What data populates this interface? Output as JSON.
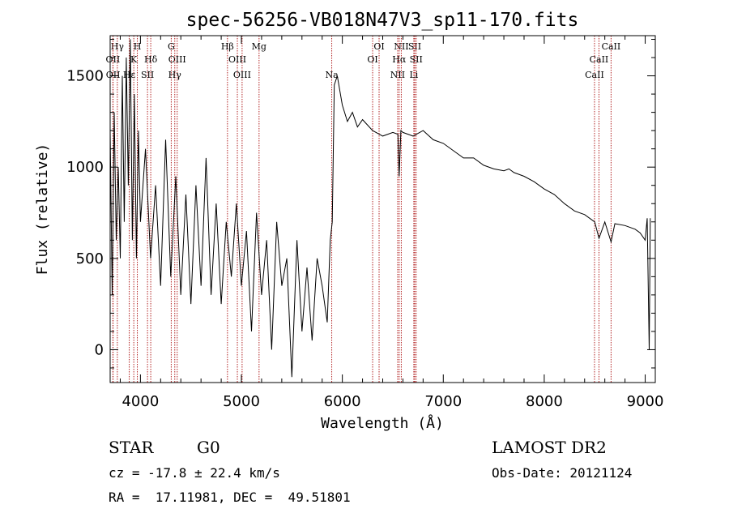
{
  "chart_data": {
    "type": "line",
    "title": "spec-56256-VB018N47V3_sp11-170.fits",
    "xlabel": "Wavelength (Å)",
    "ylabel": "Flux (relative)",
    "xlim": [
      3700,
      9100
    ],
    "ylim": [
      -180,
      1720
    ],
    "x_ticks": [
      4000,
      5000,
      6000,
      7000,
      8000,
      9000
    ],
    "y_ticks": [
      0,
      500,
      1000,
      1500
    ],
    "grid": false,
    "series": [
      {
        "color": "#000000",
        "x": [
          3700,
          3720,
          3740,
          3760,
          3780,
          3800,
          3820,
          3840,
          3860,
          3880,
          3900,
          3920,
          3940,
          3960,
          3980,
          4000,
          4050,
          4100,
          4150,
          4200,
          4250,
          4300,
          4350,
          4400,
          4450,
          4500,
          4550,
          4600,
          4650,
          4700,
          4750,
          4800,
          4850,
          4900,
          4950,
          5000,
          5050,
          5100,
          5150,
          5200,
          5250,
          5300,
          5350,
          5400,
          5450,
          5500,
          5550,
          5600,
          5650,
          5700,
          5750,
          5800,
          5850,
          5880,
          5900,
          5920,
          5950,
          6000,
          6050,
          6100,
          6150,
          6200,
          6300,
          6400,
          6500,
          6550,
          6563,
          6580,
          6600,
          6650,
          6700,
          6800,
          6900,
          7000,
          7100,
          7200,
          7300,
          7400,
          7500,
          7600,
          7650,
          7700,
          7800,
          7900,
          8000,
          8100,
          8200,
          8300,
          8400,
          8500,
          8542,
          8600,
          8662,
          8700,
          8800,
          8900,
          8950,
          9000,
          9020,
          9040,
          9050
        ],
        "y": [
          1200,
          300,
          1300,
          600,
          1000,
          500,
          1500,
          700,
          1600,
          900,
          1700,
          600,
          1400,
          500,
          1200,
          700,
          1100,
          500,
          900,
          350,
          1150,
          400,
          950,
          300,
          850,
          250,
          900,
          350,
          1050,
          300,
          800,
          250,
          700,
          400,
          800,
          350,
          650,
          100,
          750,
          300,
          600,
          0,
          700,
          350,
          500,
          -150,
          600,
          100,
          450,
          50,
          500,
          350,
          150,
          600,
          700,
          1450,
          1500,
          1340,
          1250,
          1300,
          1220,
          1260,
          1200,
          1170,
          1190,
          1180,
          950,
          1200,
          1190,
          1180,
          1170,
          1200,
          1150,
          1130,
          1090,
          1050,
          1050,
          1010,
          990,
          980,
          990,
          970,
          950,
          920,
          880,
          850,
          800,
          760,
          740,
          700,
          610,
          700,
          590,
          690,
          680,
          660,
          640,
          600,
          720,
          0,
          720
        ]
      }
    ],
    "line_markers": [
      {
        "label": "Hγ",
        "x": 3771,
        "row": 0
      },
      {
        "label": "H",
        "x": 3969,
        "row": 0
      },
      {
        "label": "G",
        "x": 4305,
        "row": 0
      },
      {
        "label": "Hβ",
        "x": 4862,
        "row": 0
      },
      {
        "label": "Mg",
        "x": 5175,
        "row": 0
      },
      {
        "label": "OI",
        "x": 6364,
        "row": 0
      },
      {
        "label": "NII",
        "x": 6584,
        "row": 0
      },
      {
        "label": "SII",
        "x": 6717,
        "row": 0
      },
      {
        "label": "CaII",
        "x": 8662,
        "row": 0
      },
      {
        "label": "OII",
        "x": 3727,
        "row": 1
      },
      {
        "label": "K",
        "x": 3934,
        "row": 1
      },
      {
        "label": "Hδ",
        "x": 4102,
        "row": 1
      },
      {
        "label": "OIII",
        "x": 4364,
        "row": 1
      },
      {
        "label": "OIII",
        "x": 4960,
        "row": 1
      },
      {
        "label": "OI",
        "x": 6300,
        "row": 1
      },
      {
        "label": "Hα",
        "x": 6563,
        "row": 1
      },
      {
        "label": "SII",
        "x": 6731,
        "row": 1
      },
      {
        "label": "CaII",
        "x": 8542,
        "row": 1
      },
      {
        "label": "OII",
        "x": 3729,
        "row": 2
      },
      {
        "label": "Hε",
        "x": 3889,
        "row": 2
      },
      {
        "label": "SII",
        "x": 4070,
        "row": 2
      },
      {
        "label": "Hγ",
        "x": 4340,
        "row": 2
      },
      {
        "label": "OIII",
        "x": 5007,
        "row": 2
      },
      {
        "label": "Na",
        "x": 5895,
        "row": 2
      },
      {
        "label": "NII",
        "x": 6548,
        "row": 2
      },
      {
        "label": "Li",
        "x": 6708,
        "row": 2
      },
      {
        "label": "CaII",
        "x": 8498,
        "row": 2
      }
    ],
    "marker_color": "#b22222"
  },
  "info": {
    "class_label": "STAR",
    "subclass": "G0",
    "survey": "LAMOST DR2",
    "cz": "cz = -17.8 ± 22.4 km/s",
    "obs_date": "Obs-Date: 20121124",
    "radec": "RA =  17.11981, DEC =  49.51801"
  }
}
